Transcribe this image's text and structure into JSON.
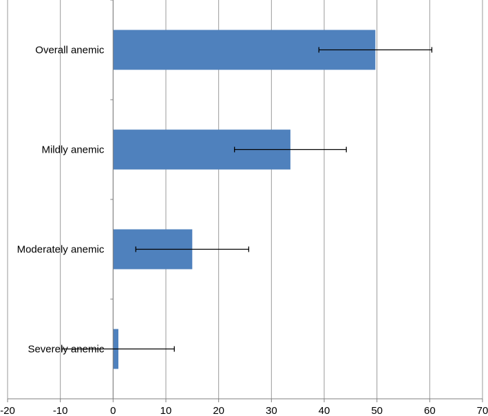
{
  "chart_data": {
    "type": "bar",
    "orientation": "horizontal",
    "title": "",
    "xlabel": "",
    "ylabel": "",
    "categories": [
      "Overall anemic",
      "Mildly anemic",
      "Moderately anemic",
      "Severely anemic"
    ],
    "values": [
      49.7,
      33.6,
      15.0,
      1.0
    ],
    "error_low": [
      39.0,
      23.0,
      4.3,
      -9.7
    ],
    "error_high": [
      60.4,
      44.2,
      25.7,
      11.6
    ],
    "xlim": [
      -20,
      70
    ],
    "x_ticks": [
      "-20",
      "-10",
      "0",
      "10",
      "20",
      "30",
      "40",
      "50",
      "60",
      "70"
    ],
    "grid": "vertical",
    "legend": "none",
    "colors": {
      "bar": "#4f81bd",
      "grid": "#999999",
      "axis": "#7f7f7f",
      "error_bar": "#000000"
    }
  }
}
